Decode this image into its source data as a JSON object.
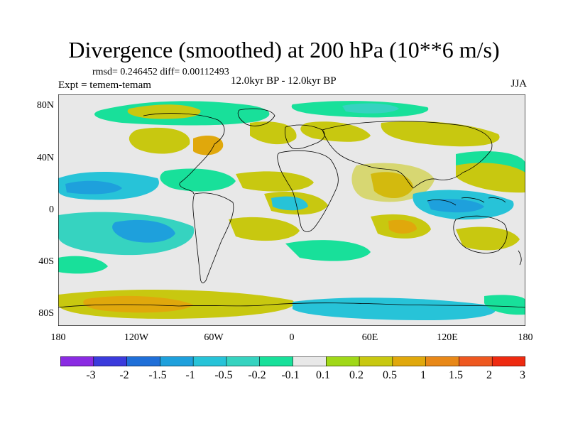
{
  "header": {
    "title": "Divergence (smoothed) at 200 hPa (10**6 m/s)",
    "stats": "rmsd= 0.246452 diff= 0.00112493",
    "experiment": "Expt = temem-temam",
    "period": "12.0kyr BP - 12.0kyr BP",
    "season": "JJA"
  },
  "axes": {
    "lat_labels": [
      "80N",
      "40N",
      "0",
      "40S",
      "80S"
    ],
    "lon_labels": [
      "180",
      "120W",
      "60W",
      "0",
      "60E",
      "120E",
      "180"
    ]
  },
  "colorbar": {
    "labels": [
      "-3",
      "-2",
      "-1.5",
      "-1",
      "-0.5",
      "-0.2",
      "-0.1",
      "0.1",
      "0.2",
      "0.5",
      "1",
      "1.5",
      "2",
      "3"
    ],
    "colors": [
      "#8a2be2",
      "#3b3bdc",
      "#1f6fd8",
      "#1ea0dc",
      "#27c3d8",
      "#36d3c0",
      "#18e09a",
      "#e8e8e8",
      "#a0d818",
      "#c8c810",
      "#e0a80c",
      "#e88818",
      "#ee5820",
      "#ee2a10"
    ]
  },
  "colors": {
    "blue": "#1ea0dc",
    "cyan": "#27c3d8",
    "teal": "#36d3c0",
    "green": "#18e09a",
    "neutral": "#e8e8e8",
    "lime": "#a0d818",
    "olive": "#c8c810",
    "orange": "#e0a80c",
    "dark_orange": "#e88818"
  }
}
